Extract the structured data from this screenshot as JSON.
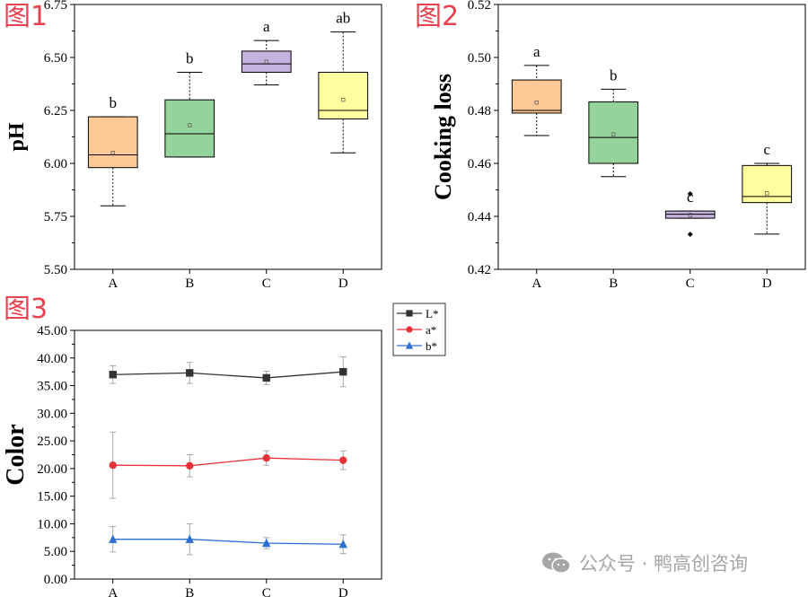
{
  "figure_labels": [
    "图1",
    "图2",
    "图3"
  ],
  "watermark": "公众号 · 鸭高创咨询",
  "chart_data": [
    {
      "type": "box",
      "ylabel": "pH",
      "ylim": [
        5.5,
        6.75
      ],
      "yticks": [
        "5.50",
        "5.75",
        "6.00",
        "6.25",
        "6.50",
        "6.75"
      ],
      "categories": [
        "A",
        "B",
        "C",
        "D"
      ],
      "boxes": [
        {
          "category": "A",
          "whisker_low": 5.8,
          "q1": 5.98,
          "median": 6.04,
          "q3": 6.22,
          "whisker_high": 6.22,
          "mean": 6.05,
          "letter": "b",
          "color": "#fdc896"
        },
        {
          "category": "B",
          "whisker_low": 6.03,
          "q1": 6.03,
          "median": 6.14,
          "q3": 6.3,
          "whisker_high": 6.43,
          "mean": 6.18,
          "letter": "b",
          "color": "#94d49c"
        },
        {
          "category": "C",
          "whisker_low": 6.37,
          "q1": 6.43,
          "median": 6.47,
          "q3": 6.53,
          "whisker_high": 6.58,
          "mean": 6.48,
          "letter": "a",
          "color": "#c3b3de"
        },
        {
          "category": "D",
          "whisker_low": 6.05,
          "q1": 6.21,
          "median": 6.25,
          "q3": 6.43,
          "whisker_high": 6.62,
          "mean": 6.3,
          "letter": "ab",
          "color": "#fefe9f"
        }
      ]
    },
    {
      "type": "box",
      "ylabel": "Cooking loss",
      "ylim": [
        0.42,
        0.52
      ],
      "yticks": [
        "0.42",
        "0.44",
        "0.46",
        "0.48",
        "0.50",
        "0.52"
      ],
      "categories": [
        "A",
        "B",
        "C",
        "D"
      ],
      "boxes": [
        {
          "category": "A",
          "whisker_low": 0.4705,
          "q1": 0.479,
          "median": 0.48,
          "q3": 0.4915,
          "whisker_high": 0.497,
          "mean": 0.483,
          "letter": "a",
          "color": "#fdc896",
          "outliers": []
        },
        {
          "category": "B",
          "whisker_low": 0.455,
          "q1": 0.46,
          "median": 0.4698,
          "q3": 0.4832,
          "whisker_high": 0.488,
          "mean": 0.471,
          "letter": "b",
          "color": "#94d49c",
          "outliers": []
        },
        {
          "category": "C",
          "whisker_low": 0.4393,
          "q1": 0.4393,
          "median": 0.4408,
          "q3": 0.442,
          "whisker_high": 0.442,
          "mean": 0.4405,
          "letter": "c",
          "color": "#c3b3de",
          "outliers": [
            0.4485,
            0.4332
          ]
        },
        {
          "category": "D",
          "whisker_low": 0.4333,
          "q1": 0.4452,
          "median": 0.4475,
          "q3": 0.4592,
          "whisker_high": 0.46,
          "mean": 0.4487,
          "letter": "c",
          "color": "#fefe9f",
          "outliers": []
        }
      ]
    },
    {
      "type": "line",
      "ylabel": "Color",
      "ylim": [
        0,
        45
      ],
      "yticks": [
        "0.00",
        "5.00",
        "10.00",
        "15.00",
        "20.00",
        "25.00",
        "30.00",
        "35.00",
        "40.00",
        "45.00"
      ],
      "categories": [
        "A",
        "B",
        "C",
        "D"
      ],
      "legend_position": "top-right, outside plot",
      "series": [
        {
          "name": "L*",
          "marker": "square",
          "color": "#333333",
          "values": [
            37.0,
            37.3,
            36.4,
            37.5
          ],
          "errors": [
            1.6,
            1.9,
            1.2,
            2.7
          ]
        },
        {
          "name": "a*",
          "marker": "circle",
          "color": "#e8323a",
          "values": [
            20.6,
            20.5,
            21.9,
            21.5
          ],
          "errors": [
            6.0,
            2.0,
            1.3,
            1.7
          ]
        },
        {
          "name": "b*",
          "marker": "triangle",
          "color": "#2b6fd1",
          "values": [
            7.2,
            7.2,
            6.5,
            6.3
          ],
          "errors": [
            2.3,
            2.8,
            1.0,
            1.7
          ]
        }
      ]
    }
  ]
}
